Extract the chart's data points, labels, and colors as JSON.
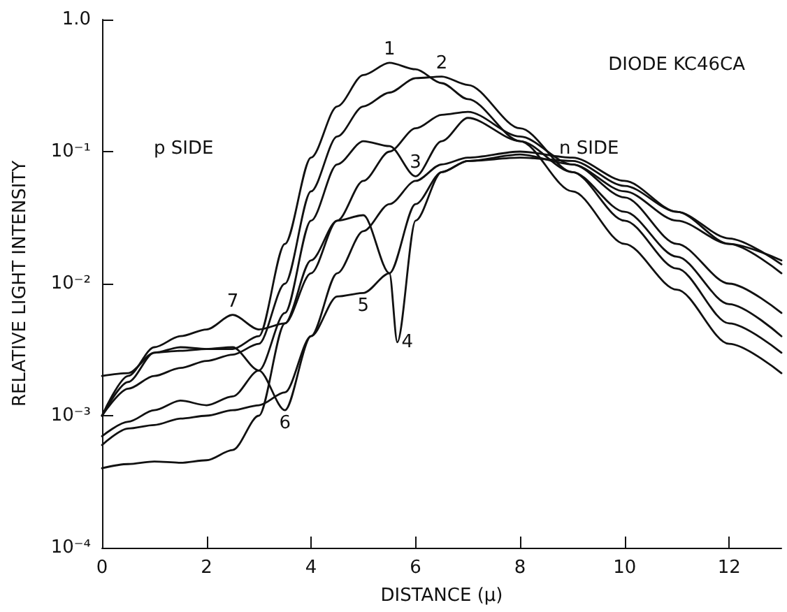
{
  "chart_data": {
    "type": "line",
    "xlabel": "DISTANCE (μ)",
    "ylabel": "RELATIVE LIGHT INTENSITY",
    "log": "y",
    "xlim": [
      0,
      13
    ],
    "xticks": [
      0,
      2,
      4,
      6,
      8,
      10,
      12
    ],
    "ylim": [
      0.0001,
      1
    ],
    "yticks": [
      {
        "value": 0.0001,
        "label": "10⁻⁴"
      },
      {
        "value": 0.001,
        "label": "10⁻³"
      },
      {
        "value": 0.01,
        "label": "10⁻²"
      },
      {
        "value": 0.1,
        "label": "10⁻¹"
      },
      {
        "value": 1,
        "label": "1.0"
      }
    ],
    "grid": false,
    "legend": false,
    "marker": "none",
    "line_style": "solid",
    "annotations": [
      "DIODE KC46CA",
      "p SIDE",
      "n SIDE"
    ],
    "series": [
      {
        "name": "1",
        "color": "#111111",
        "x": [
          0,
          0.5,
          1,
          1.5,
          2,
          2.5,
          3,
          3.5,
          4,
          4.5,
          5,
          5.5,
          6,
          6.5,
          7,
          8,
          9,
          10,
          11,
          12,
          13
        ],
        "values": [
          0.002,
          0.0021,
          0.003,
          0.0031,
          0.0032,
          0.0032,
          0.004,
          0.02,
          0.09,
          0.22,
          0.38,
          0.47,
          0.42,
          0.33,
          0.25,
          0.12,
          0.05,
          0.02,
          0.009,
          0.0035,
          0.0021
        ]
      },
      {
        "name": "2",
        "color": "#111111",
        "x": [
          0,
          0.5,
          1,
          1.5,
          2,
          2.5,
          3,
          3.5,
          4,
          4.5,
          5,
          5.5,
          6,
          6.5,
          7,
          8,
          9,
          10,
          11,
          12,
          13
        ],
        "values": [
          0.001,
          0.0016,
          0.002,
          0.0023,
          0.0026,
          0.0029,
          0.0035,
          0.01,
          0.05,
          0.13,
          0.22,
          0.28,
          0.36,
          0.37,
          0.32,
          0.15,
          0.07,
          0.03,
          0.013,
          0.005,
          0.003
        ]
      },
      {
        "name": "3",
        "color": "#111111",
        "x": [
          0,
          0.5,
          1,
          1.5,
          2,
          2.5,
          3,
          3.5,
          4,
          4.5,
          5,
          5.5,
          6,
          6.5,
          7,
          8,
          9,
          10,
          11,
          12,
          13
        ],
        "values": [
          0.0007,
          0.0009,
          0.0011,
          0.0013,
          0.0012,
          0.0014,
          0.0022,
          0.006,
          0.03,
          0.08,
          0.12,
          0.11,
          0.065,
          0.12,
          0.18,
          0.12,
          0.07,
          0.035,
          0.016,
          0.007,
          0.004
        ]
      },
      {
        "name": "4",
        "color": "#111111",
        "x": [
          0,
          0.5,
          1,
          1.5,
          2,
          2.5,
          3,
          3.5,
          4,
          4.5,
          5,
          5.5,
          5.65,
          6,
          6.5,
          7,
          8,
          9,
          10,
          11,
          12,
          13
        ],
        "values": [
          0.0004,
          0.00043,
          0.00045,
          0.00044,
          0.00046,
          0.00055,
          0.001,
          0.005,
          0.015,
          0.03,
          0.033,
          0.012,
          0.0036,
          0.03,
          0.07,
          0.085,
          0.095,
          0.08,
          0.045,
          0.02,
          0.01,
          0.006
        ]
      },
      {
        "name": "5",
        "color": "#111111",
        "x": [
          0,
          0.5,
          1,
          1.5,
          2,
          2.5,
          3,
          3.5,
          4,
          4.5,
          5,
          5.5,
          6,
          6.5,
          7,
          8,
          9,
          10,
          11,
          12,
          13
        ],
        "values": [
          0.0006,
          0.0008,
          0.00085,
          0.00095,
          0.001,
          0.0011,
          0.0012,
          0.0015,
          0.004,
          0.008,
          0.0085,
          0.012,
          0.04,
          0.07,
          0.085,
          0.09,
          0.085,
          0.055,
          0.035,
          0.02,
          0.012
        ]
      },
      {
        "name": "6",
        "color": "#111111",
        "x": [
          0,
          0.5,
          1,
          1.5,
          2,
          2.5,
          3,
          3.5,
          4,
          4.5,
          5,
          5.5,
          6,
          6.5,
          7,
          8,
          9,
          10,
          11,
          12,
          13
        ],
        "values": [
          0.001,
          0.0018,
          0.003,
          0.0033,
          0.0032,
          0.0033,
          0.0022,
          0.0011,
          0.004,
          0.012,
          0.025,
          0.04,
          0.06,
          0.08,
          0.09,
          0.1,
          0.09,
          0.06,
          0.035,
          0.022,
          0.014
        ]
      },
      {
        "name": "7",
        "color": "#111111",
        "x": [
          0,
          0.5,
          1,
          1.5,
          2,
          2.5,
          3,
          3.5,
          4,
          4.5,
          5,
          5.5,
          6,
          6.5,
          7,
          8,
          9,
          10,
          11,
          12,
          13
        ],
        "values": [
          0.001,
          0.002,
          0.0033,
          0.004,
          0.0045,
          0.0058,
          0.0045,
          0.005,
          0.012,
          0.03,
          0.06,
          0.1,
          0.15,
          0.19,
          0.2,
          0.13,
          0.08,
          0.05,
          0.03,
          0.02,
          0.015
        ]
      }
    ]
  }
}
